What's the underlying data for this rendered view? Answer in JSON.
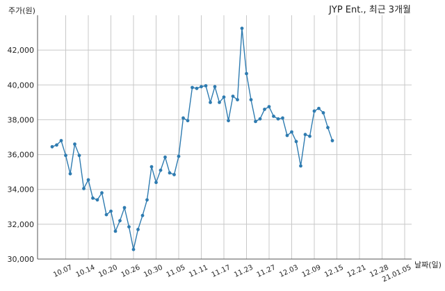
{
  "chart_data": {
    "type": "line",
    "title": "JYP Ent., 최근 3개월",
    "xlabel": "날짜(일)",
    "ylabel": "주가(원)",
    "ylim": [
      30000,
      44000
    ],
    "yticks": [
      30000,
      32000,
      34000,
      36000,
      38000,
      40000,
      42000
    ],
    "ytick_labels": [
      "30,000",
      "32,000",
      "34,000",
      "36,000",
      "38,000",
      "40,000",
      "42,000"
    ],
    "xtick_labels": [
      "10.07",
      "10.14",
      "10.20",
      "10.26",
      "10.30",
      "11.05",
      "11.11",
      "11.17",
      "11.23",
      "11.27",
      "12.03",
      "12.09",
      "12.15",
      "12.21",
      "12.28",
      "21.01.05"
    ],
    "xtick_index": [
      3,
      8,
      13,
      18,
      23,
      28,
      33,
      38,
      43,
      48,
      53,
      58,
      63,
      68,
      73,
      78
    ],
    "grid": true,
    "series": [
      {
        "color": "#2e7bb0",
        "values": [
          36450,
          36550,
          36800,
          35950,
          34900,
          36600,
          35950,
          34050,
          34550,
          33500,
          33400,
          33800,
          32550,
          32750,
          31600,
          32200,
          32950,
          31850,
          30550,
          31700,
          32500,
          33400,
          35300,
          34400,
          35100,
          35850,
          34950,
          34850,
          35900,
          38100,
          37950,
          39850,
          39800,
          39900,
          39950,
          39000,
          39900,
          39000,
          39300,
          37950,
          39350,
          39150,
          43250,
          40650,
          39150,
          37900,
          38050,
          38600,
          38750,
          38200,
          38050,
          38100,
          37100,
          37300,
          36750,
          35350,
          37150,
          37050,
          38500,
          38650,
          38400,
          37550,
          36800
        ]
      }
    ]
  }
}
